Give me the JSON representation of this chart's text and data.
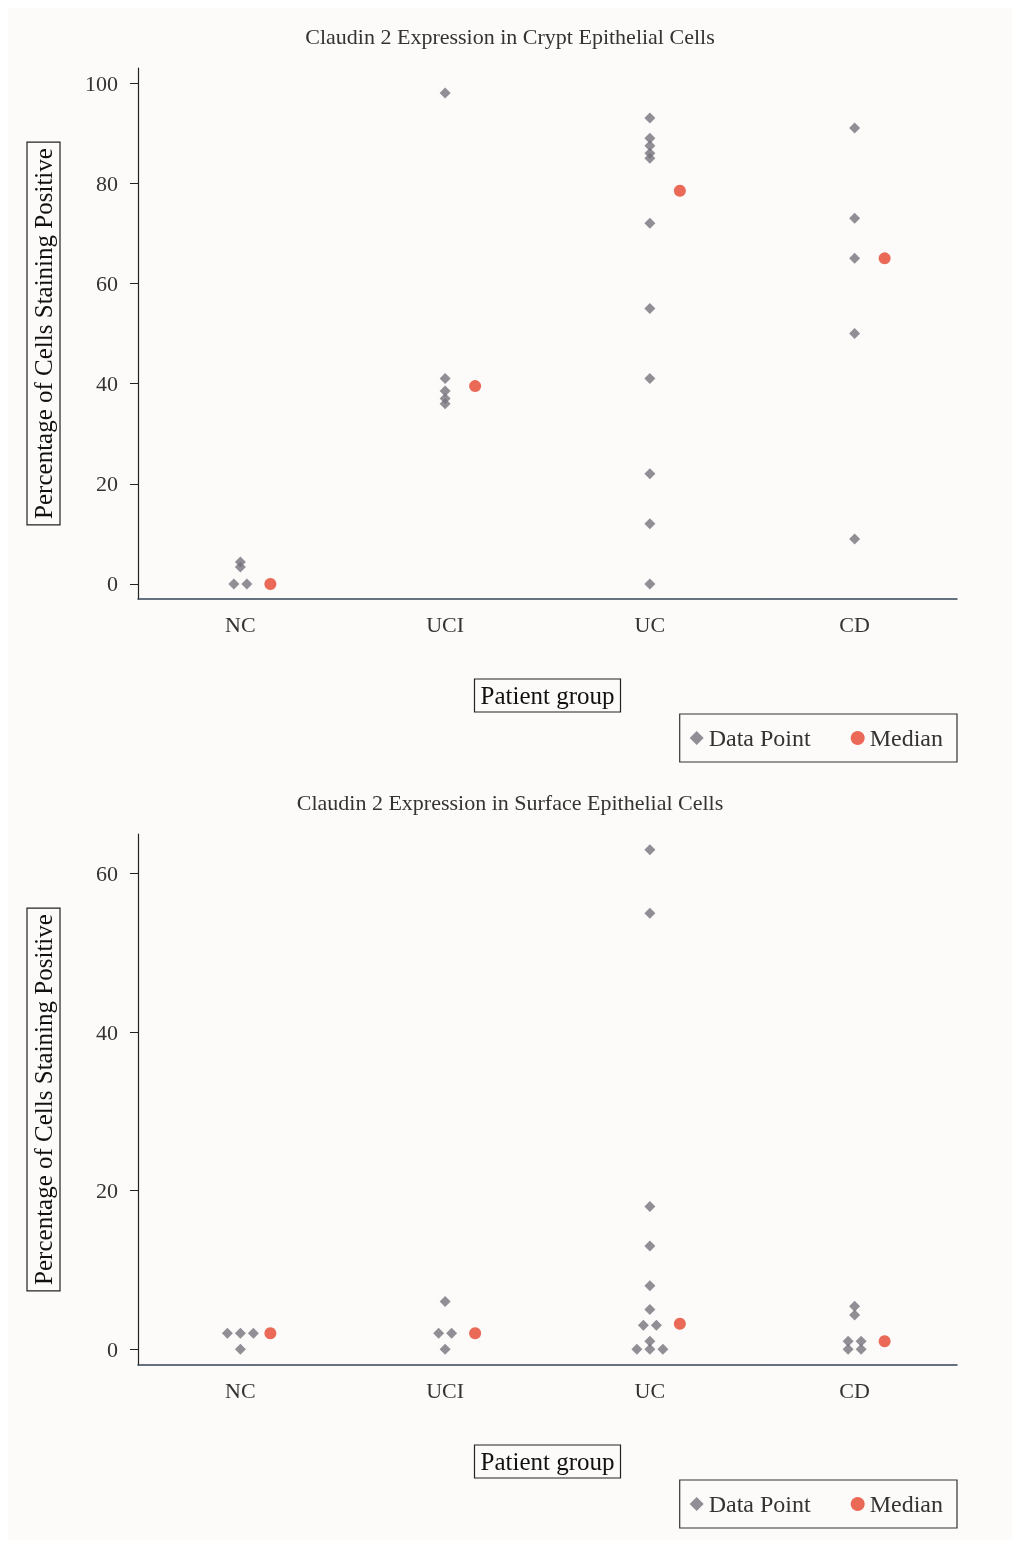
{
  "chart_data": [
    {
      "type": "scatter",
      "title": "Claudin 2 Expression in Crypt Epithelial Cells",
      "xlabel": "Patient group",
      "ylabel": "Percentage of Cells Staining Positive",
      "categories": [
        "NC",
        "UCI",
        "UC",
        "CD"
      ],
      "ylim": [
        -3,
        103
      ],
      "yticks": [
        0,
        20,
        40,
        60,
        80,
        100
      ],
      "grid": false,
      "legend": "bottom right",
      "series": [
        {
          "name": "Data Point",
          "color": "#77737d",
          "marker": "diamond",
          "x": [
            "NC",
            "NC",
            "NC",
            "NC",
            "UCI",
            "UCI",
            "UCI",
            "UCI",
            "UCI",
            "UC",
            "UC",
            "UC",
            "UC",
            "UC",
            "UC",
            "UC",
            "UC",
            "UC",
            "UC",
            "UC",
            "CD",
            "CD",
            "CD",
            "CD",
            "CD"
          ],
          "values": [
            4.4,
            3.4,
            0,
            0,
            98,
            41,
            38.5,
            37,
            36,
            93,
            89,
            87.5,
            86,
            85,
            72,
            55,
            41,
            22,
            12,
            0,
            91,
            73,
            65,
            50,
            9
          ]
        },
        {
          "name": "Median",
          "color": "#e5452e",
          "marker": "circle",
          "x": [
            "NC",
            "UCI",
            "UC",
            "CD"
          ],
          "values": [
            0,
            39.5,
            78.5,
            65
          ]
        }
      ]
    },
    {
      "type": "scatter",
      "title": "Claudin 2 Expression in Surface Epithelial Cells",
      "xlabel": "Patient group",
      "ylabel": "Percentage of Cells Staining Positive",
      "categories": [
        "NC",
        "UCI",
        "UC",
        "CD"
      ],
      "ylim": [
        -2,
        65
      ],
      "yticks": [
        0,
        20,
        40,
        60
      ],
      "grid": false,
      "legend": "bottom right",
      "series": [
        {
          "name": "Data Point",
          "color": "#77737d",
          "marker": "diamond",
          "x": [
            "NC",
            "NC",
            "NC",
            "NC",
            "UCI",
            "UCI",
            "UCI",
            "UCI",
            "UC",
            "UC",
            "UC",
            "UC",
            "UC",
            "UC",
            "UC",
            "UC",
            "UC",
            "UC",
            "UC",
            "UC",
            "CD",
            "CD",
            "CD",
            "CD",
            "CD",
            "CD"
          ],
          "values": [
            2,
            2,
            2,
            0,
            6,
            2,
            2,
            0,
            63,
            55,
            18,
            13,
            8,
            5,
            3,
            3,
            1,
            0,
            0,
            0,
            5.4,
            4.3,
            1,
            0,
            1,
            0
          ]
        },
        {
          "name": "Median",
          "color": "#e5452e",
          "marker": "circle",
          "x": [
            "NC",
            "UCI",
            "UC",
            "CD"
          ],
          "values": [
            2,
            2,
            3.2,
            1
          ]
        }
      ]
    }
  ]
}
